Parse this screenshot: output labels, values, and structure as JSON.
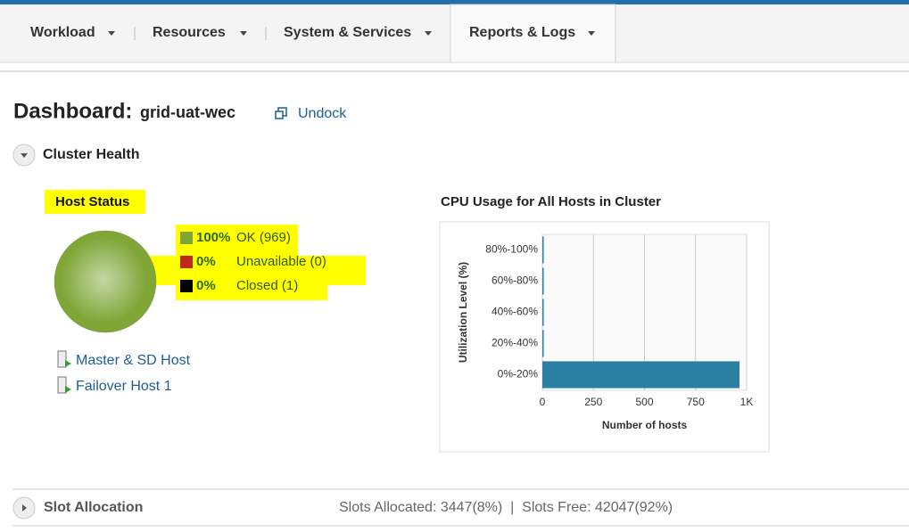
{
  "nav": {
    "items": [
      "Workload",
      "Resources",
      "System & Services",
      "Reports & Logs"
    ]
  },
  "header": {
    "title": "Dashboard:",
    "cluster": "grid-uat-wec",
    "undock": "Undock"
  },
  "cluster_health": {
    "title": "Cluster Health"
  },
  "host_status": {
    "type": "pie",
    "title": "Host Status",
    "values": [
      100,
      0,
      0
    ],
    "value_labels": [
      "100%",
      "0%",
      "0%"
    ],
    "labels": [
      "OK (969)",
      "Unavailable (0)",
      "Closed (1)"
    ],
    "colors": [
      "#7fa637",
      "#c0281c",
      "#000000"
    ]
  },
  "hosts": [
    "Master & SD Host",
    "Failover Host 1"
  ],
  "cpu_chart": {
    "type": "bar",
    "title": "CPU Usage for All Hosts in Cluster",
    "categories": [
      "80%-100%",
      "60%-80%",
      "40%-60%",
      "20%-40%",
      "0%-20%"
    ],
    "values": [
      0,
      0,
      0,
      0,
      965
    ],
    "color": "#2b7fa3",
    "xlim": [
      0,
      1000
    ],
    "xticks": [
      0,
      250,
      500,
      750,
      {
        "value": 1000,
        "label": "1K"
      }
    ],
    "xlabel": "Number of hosts",
    "ylabel": "Utilization Level (%)",
    "grid": true
  },
  "slot_allocation": {
    "title": "Slot Allocation",
    "summary": "Slots Allocated: 3447(8%)  |  Slots Free: 42047(92%)"
  }
}
